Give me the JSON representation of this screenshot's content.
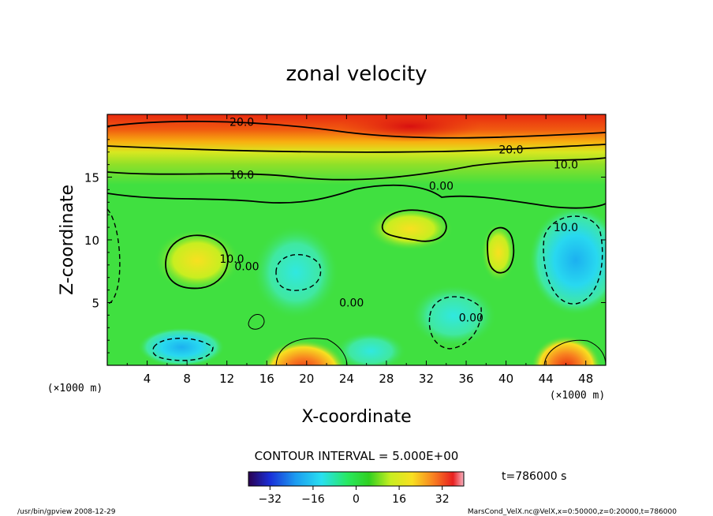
{
  "chart_data": {
    "type": "heatmap",
    "title": "zonal velocity",
    "xlabel": "X-coordinate",
    "ylabel": "Z-coordinate",
    "x_unit": "(×1000 m)",
    "y_unit": "(×1000 m)",
    "x_unit_repeat": "(×1000 m)",
    "xlim": [
      0,
      50
    ],
    "ylim": [
      0,
      20
    ],
    "x_ticks": [
      4,
      8,
      12,
      16,
      20,
      24,
      28,
      32,
      36,
      40,
      44,
      48
    ],
    "y_ticks": [
      5,
      10,
      15
    ],
    "contour_interval_text": "CONTOUR INTERVAL = 5.000E+00",
    "time_label": "t=786000 s",
    "colorbar": {
      "range": [
        -40,
        40
      ],
      "ticks": [
        -32,
        -16,
        0,
        16,
        32
      ],
      "tick_labels": [
        "−32",
        "−16",
        "0",
        "16",
        "32"
      ]
    },
    "contour_labels": [
      {
        "text": "20.0",
        "x": 13.5,
        "z": 19.4
      },
      {
        "text": "20.0",
        "x": 40.5,
        "z": 17.2
      },
      {
        "text": "10.0",
        "x": 46.0,
        "z": 16.0
      },
      {
        "text": "10.0",
        "x": 13.5,
        "z": 15.2
      },
      {
        "text": "0.00",
        "x": 33.5,
        "z": 14.3
      },
      {
        "text": "10.0",
        "x": 46.0,
        "z": 11.0
      },
      {
        "text": "10.0",
        "x": 12.5,
        "z": 8.5
      },
      {
        "text": "0.00",
        "x": 14.0,
        "z": 7.9
      },
      {
        "text": "0.00",
        "x": 24.5,
        "z": 5.0
      },
      {
        "text": "0.00",
        "x": 36.5,
        "z": 3.8
      }
    ]
  },
  "footer": {
    "left": "/usr/bin/gpview   2008-12-29",
    "right": "MarsCond_VelX.nc@VelX,x=0:50000,z=0:20000,t=786000"
  }
}
